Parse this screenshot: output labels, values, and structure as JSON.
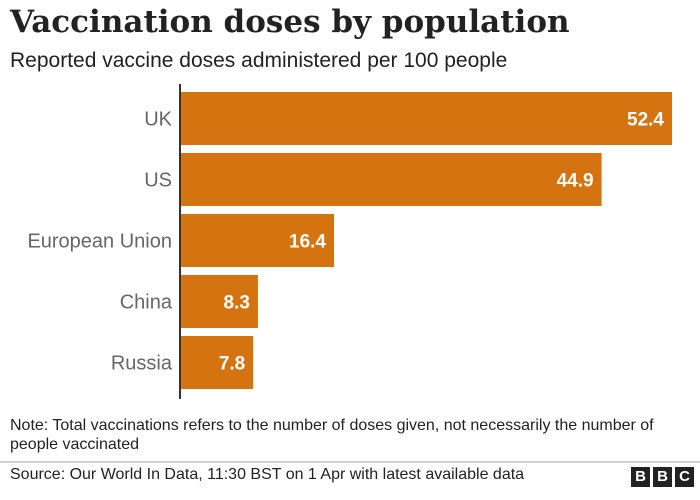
{
  "chart_data": {
    "type": "bar",
    "orientation": "horizontal",
    "title": "Vaccination doses by population",
    "subtitle": "Reported vaccine doses administered per 100 people",
    "categories": [
      "UK",
      "US",
      "European Union",
      "China",
      "Russia"
    ],
    "values": [
      52.4,
      44.9,
      16.4,
      8.3,
      7.8
    ],
    "data_labels": [
      "52.4",
      "44.9",
      "16.4",
      "8.3",
      "7.8"
    ],
    "xlim": [
      0,
      52.4
    ],
    "grid": false,
    "bar_color": "#d4730f"
  },
  "note": "Note: Total vaccinations refers to the number of doses given, not necessarily the number of people vaccinated",
  "source": "Source: Our World In Data, 11:30 BST on 1 Apr with latest available data",
  "logo": {
    "letters": [
      "B",
      "B",
      "C"
    ]
  }
}
